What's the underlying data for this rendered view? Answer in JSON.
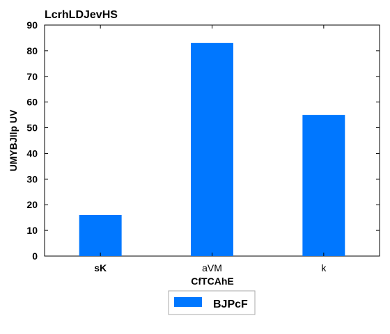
{
  "chart_data": {
    "type": "bar",
    "title": "LcrhLDJevHS",
    "xlabel": "CfTCAhE",
    "ylabel": "UMYBJIlp UV",
    "categories": [
      "sK",
      "aVM",
      "k"
    ],
    "series": [
      {
        "name": "BJPcF",
        "values": [
          16,
          83,
          55
        ]
      }
    ],
    "ylim": [
      0,
      90
    ],
    "yticks": [
      0,
      10,
      20,
      30,
      40,
      50,
      60,
      70,
      80,
      90
    ],
    "grid": false,
    "legend_position": "bottom-center",
    "colors": {
      "bar": "#0077ff",
      "axis": "#000000",
      "legend_border": "#aaaaaa"
    }
  }
}
